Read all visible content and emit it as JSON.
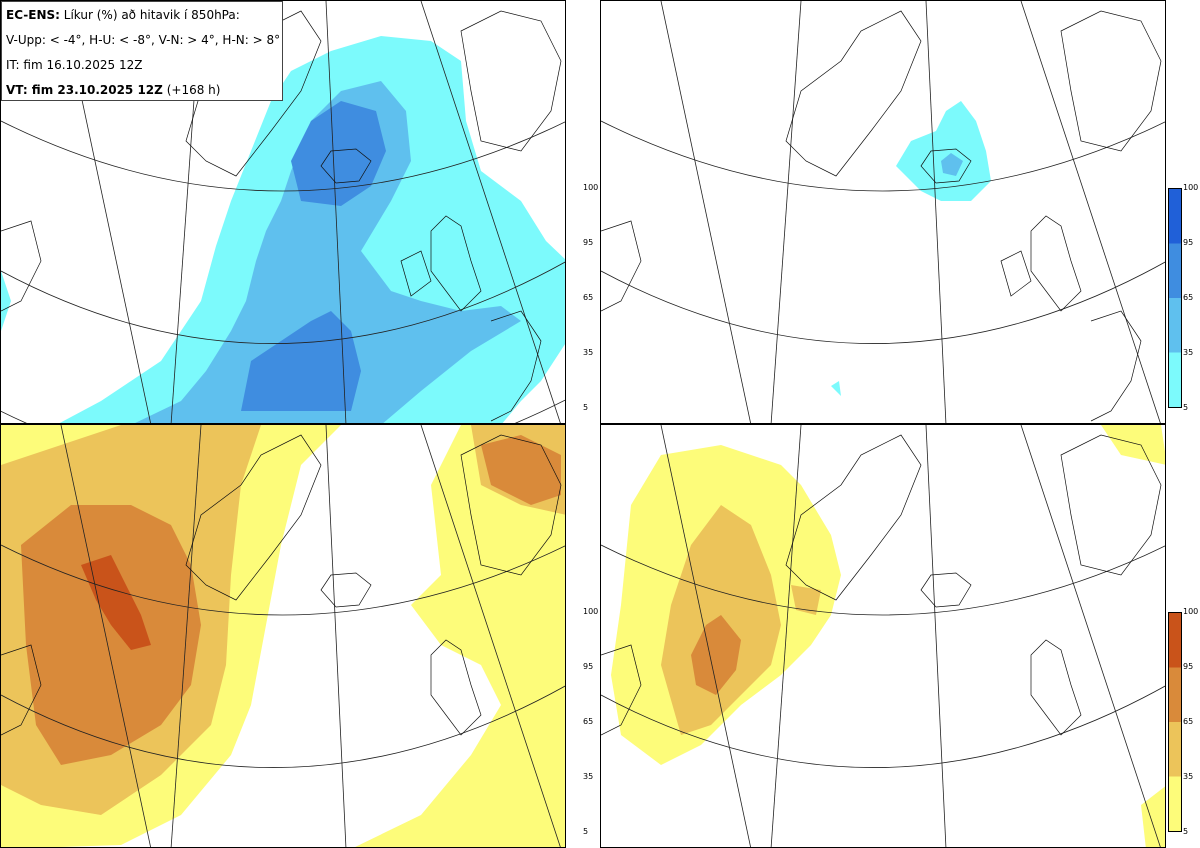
{
  "header": {
    "model": "EC-ENS:",
    "title": "Líkur (%) að hitavik í 850hPa:",
    "thresholds": "V-Upp: < -4°, H-U: < -8°, V-N: > 4°, H-N: > 8°",
    "init_time": "IT: fim 16.10.2025 12Z",
    "valid_label": "VT: fim 23.10.2025 12Z",
    "lead": "(+168 h)"
  },
  "legend_cold": {
    "ticks": [
      "100",
      "95",
      "65",
      "35",
      "5"
    ],
    "colors": [
      "#2060d8",
      "#3f8de0",
      "#5fc0ee",
      "#7cfafc"
    ]
  },
  "legend_warm": {
    "ticks": [
      "100",
      "95",
      "65",
      "35",
      "5"
    ],
    "colors": [
      "#c9531a",
      "#d98a3a",
      "#ecc45a",
      "#fdfc7a"
    ]
  },
  "panels": [
    {
      "id": "V-Upp",
      "scheme": "cold",
      "level": "strong"
    },
    {
      "id": "H-U",
      "scheme": "cold",
      "level": "weak"
    },
    {
      "id": "V-N",
      "scheme": "warm",
      "level": "strong"
    },
    {
      "id": "H-N",
      "scheme": "warm",
      "level": "medium"
    }
  ]
}
